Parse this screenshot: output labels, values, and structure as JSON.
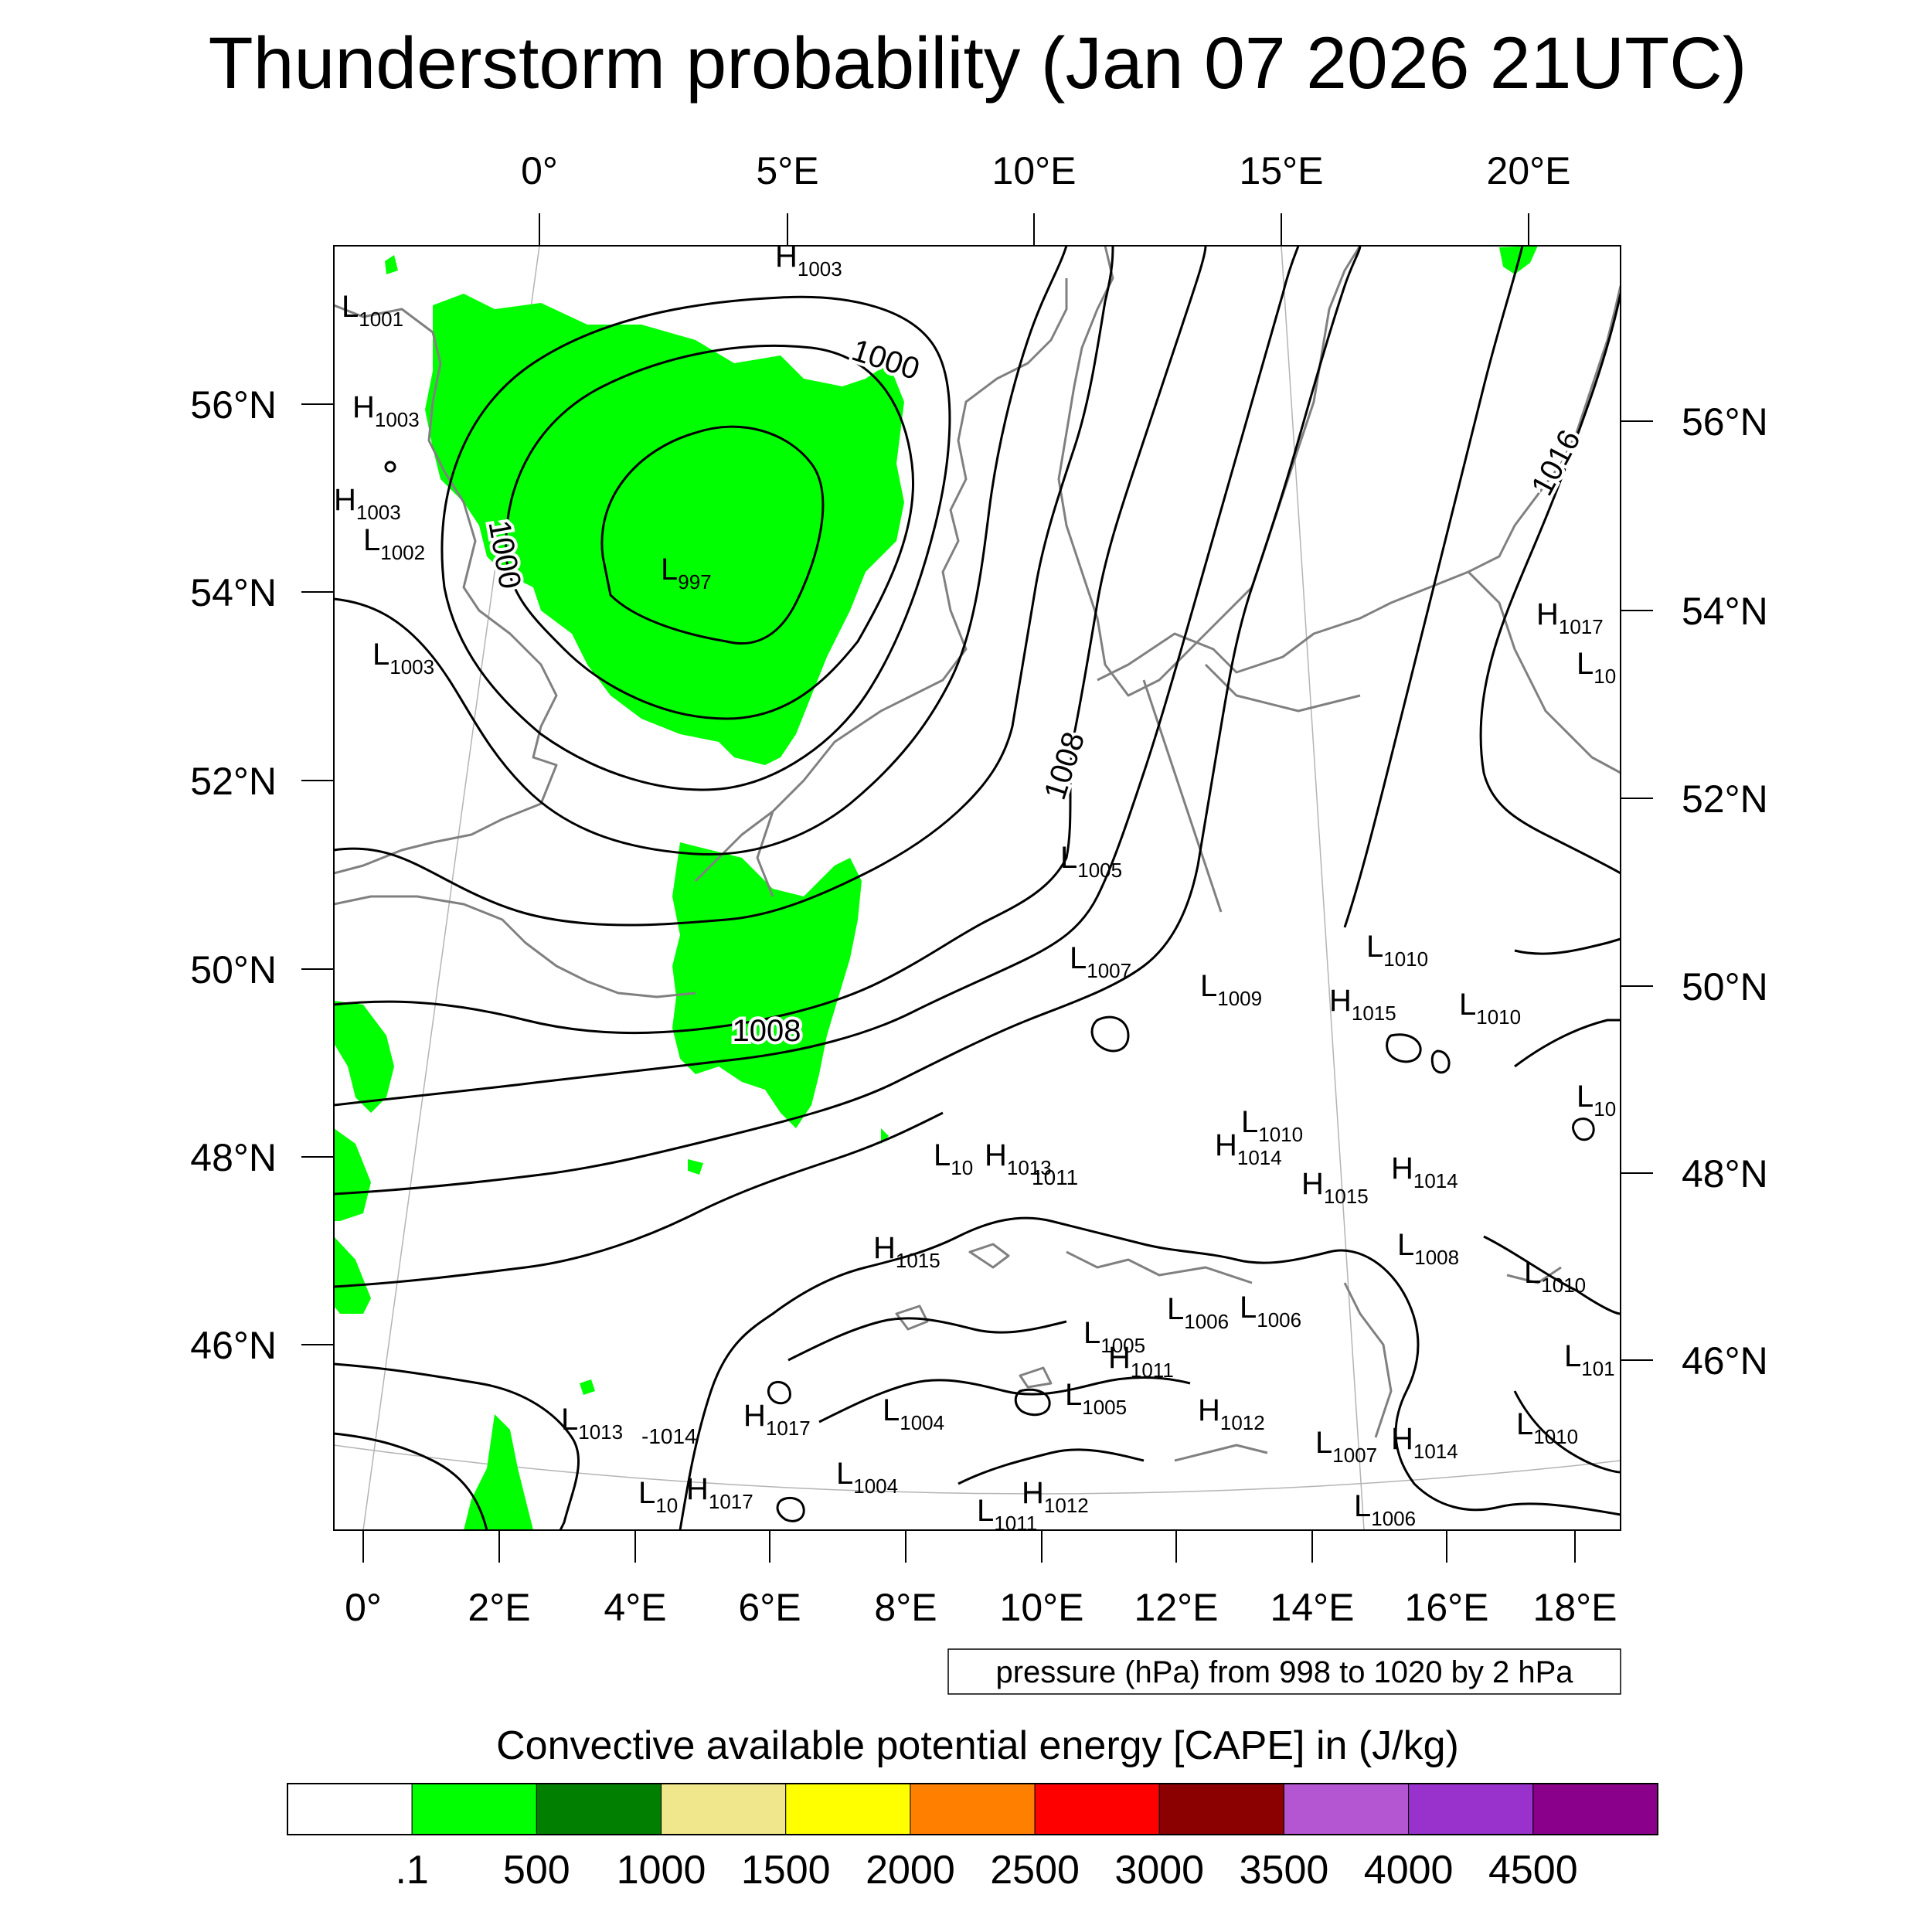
{
  "title": "Thunderstorm probability (Jan 07 2026 21UTC)",
  "colors": {
    "coast": "#808080",
    "contour": "#000000",
    "cape_fill": "#00ff00",
    "graticule": "#b4b4b4"
  },
  "map": {
    "top_lon_labels": [
      "0°",
      "5°E",
      "10°E",
      "15°E",
      "20°E"
    ],
    "bottom_lon_labels": [
      "0°",
      "2°E",
      "4°E",
      "6°E",
      "8°E",
      "10°E",
      "12°E",
      "14°E",
      "16°E",
      "18°E"
    ],
    "left_lat_labels": [
      "56°N",
      "54°N",
      "52°N",
      "50°N",
      "48°N",
      "46°N"
    ],
    "right_lat_labels": [
      "56°N",
      "54°N",
      "52°N",
      "50°N",
      "48°N",
      "46°N"
    ],
    "contour_labels": [
      "1000",
      "1000",
      "1008",
      "1008",
      "1016"
    ],
    "pressure_centers": [
      {
        "type": "H",
        "value": "1003"
      },
      {
        "type": "L",
        "value": "1001"
      },
      {
        "type": "H",
        "value": "1003"
      },
      {
        "type": "H",
        "value": "1003"
      },
      {
        "type": "L",
        "value": "1002"
      },
      {
        "type": "L",
        "value": "1003"
      },
      {
        "type": "L",
        "value": "997"
      },
      {
        "type": "H",
        "value": "1017"
      },
      {
        "type": "L",
        "value": "10"
      },
      {
        "type": "L",
        "value": "1005"
      },
      {
        "type": "L",
        "value": "1007"
      },
      {
        "type": "L",
        "value": "1009"
      },
      {
        "type": "L",
        "value": "1010"
      },
      {
        "type": "H",
        "value": "1015"
      },
      {
        "type": "L",
        "value": "1010"
      },
      {
        "type": "L",
        "value": "10"
      },
      {
        "type": "L",
        "value": "1010"
      },
      {
        "type": "H",
        "value": "1014"
      },
      {
        "type": "L",
        "value": "10"
      },
      {
        "type": "H",
        "value": "1013"
      },
      {
        "type": "H",
        "value": "1015"
      },
      {
        "type": "H",
        "value": "1014"
      },
      {
        "type": "H",
        "value": "1015"
      },
      {
        "type": "L",
        "value": "1008"
      },
      {
        "type": "L",
        "value": "1010"
      },
      {
        "type": "L",
        "value": "1006"
      },
      {
        "type": "L",
        "value": "1006"
      },
      {
        "type": "L",
        "value": "1005"
      },
      {
        "type": "H",
        "value": "1011"
      },
      {
        "type": "L",
        "value": "101"
      },
      {
        "type": "L",
        "value": "1013"
      },
      {
        "type": "H",
        "value": "1017"
      },
      {
        "type": "L",
        "value": "1004"
      },
      {
        "type": "L",
        "value": "1005"
      },
      {
        "type": "H",
        "value": "1012"
      },
      {
        "type": "L",
        "value": "1010"
      },
      {
        "type": "L",
        "value": "1007"
      },
      {
        "type": "H",
        "value": "1014"
      },
      {
        "type": "L",
        "value": "1004"
      },
      {
        "type": "L",
        "value": "10"
      },
      {
        "type": "H",
        "value": "1017"
      },
      {
        "type": "H",
        "value": "1012"
      },
      {
        "type": "L",
        "value": "1011"
      },
      {
        "type": "L",
        "value": "1006"
      }
    ],
    "stray_labels": [
      "-1014",
      "1011"
    ],
    "pressure_note": "pressure (hPa) from 998 to 1020 by 2 hPa"
  },
  "colorbar": {
    "title": "Convective available potential energy [CAPE] in (J/kg)",
    "colors": [
      "#ffffff",
      "#00ff00",
      "#007f00",
      "#f0e68c",
      "#ffff00",
      "#ff8000",
      "#ff0000",
      "#8b0000",
      "#b455d2",
      "#9932cc",
      "#8b008b"
    ],
    "labels": [
      ".1",
      "500",
      "1000",
      "1500",
      "2000",
      "2500",
      "3000",
      "3500",
      "4000",
      "4500"
    ]
  }
}
